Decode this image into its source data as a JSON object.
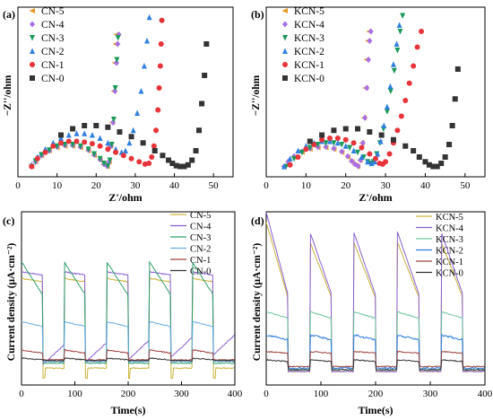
{
  "figure": {
    "panels": [
      "a",
      "b",
      "c",
      "d"
    ]
  },
  "chart_data": [
    {
      "id": "a",
      "panel_label": "(a)",
      "type": "scatter",
      "xlabel": "Z'/ohm",
      "ylabel": "−Z''/ohm",
      "xlim": [
        0,
        55
      ],
      "ylim": [
        0,
        1
      ],
      "yticks_hidden": true,
      "xticks": [
        0,
        10,
        20,
        30,
        40,
        50
      ],
      "legend": "top-left",
      "series": [
        {
          "name": "CN-5",
          "color": "#E69A2B",
          "marker": "triangle-left",
          "x": [
            3.5,
            4.5,
            6.0,
            8.0,
            10.0,
            12.0,
            14.0,
            16.0,
            18.0,
            19.5,
            21.0,
            22.0,
            22.8,
            23.3,
            23.7,
            24.1,
            24.5,
            24.8,
            25.0,
            25.2
          ],
          "y": [
            0.02,
            0.05,
            0.09,
            0.12,
            0.14,
            0.15,
            0.15,
            0.14,
            0.12,
            0.09,
            0.06,
            0.03,
            0.02,
            0.05,
            0.15,
            0.3,
            0.5,
            0.68,
            0.8,
            0.86
          ]
        },
        {
          "name": "CN-4",
          "color": "#A86FE6",
          "marker": "diamond",
          "x": [
            3.5,
            4.5,
            6.0,
            8.0,
            10.0,
            12.0,
            14.0,
            16.0,
            18.0,
            19.5,
            21.0,
            22.0,
            22.8,
            23.3,
            23.8,
            24.3,
            24.8,
            25.2,
            25.5,
            25.8
          ],
          "y": [
            0.02,
            0.05,
            0.09,
            0.12,
            0.145,
            0.155,
            0.155,
            0.145,
            0.125,
            0.095,
            0.065,
            0.035,
            0.022,
            0.05,
            0.15,
            0.3,
            0.5,
            0.68,
            0.8,
            0.86
          ]
        },
        {
          "name": "CN-3",
          "color": "#1A9A5A",
          "marker": "triangle-down",
          "x": [
            3.5,
            4.5,
            6.0,
            8.0,
            10.0,
            12.0,
            14.0,
            16.0,
            18.0,
            19.5,
            21.0,
            22.0,
            23.0,
            23.5,
            24.0,
            24.5,
            24.9,
            25.3,
            25.6
          ],
          "y": [
            0.02,
            0.055,
            0.095,
            0.125,
            0.15,
            0.16,
            0.16,
            0.15,
            0.13,
            0.1,
            0.07,
            0.04,
            0.025,
            0.06,
            0.16,
            0.32,
            0.52,
            0.7,
            0.84
          ]
        },
        {
          "name": "CN-2",
          "color": "#2F7FE0",
          "marker": "triangle-up",
          "x": [
            3.5,
            5.0,
            7.0,
            9.0,
            11.0,
            13.0,
            15.0,
            17.0,
            19.0,
            21.0,
            23.0,
            25.0,
            26.5,
            27.5,
            28.5,
            29.5,
            30.5,
            31.5,
            32.3,
            33.0,
            33.6
          ],
          "y": [
            0.03,
            0.08,
            0.13,
            0.17,
            0.2,
            0.22,
            0.23,
            0.23,
            0.22,
            0.2,
            0.17,
            0.13,
            0.11,
            0.12,
            0.17,
            0.25,
            0.36,
            0.5,
            0.66,
            0.82,
            0.97
          ]
        },
        {
          "name": "CN-1",
          "color": "#E8333A",
          "marker": "circle",
          "x": [
            3.5,
            5.0,
            7.0,
            9.0,
            11.0,
            13.0,
            15.0,
            17.0,
            19.0,
            21.0,
            23.0,
            25.0,
            27.0,
            29.0,
            31.0,
            32.5,
            33.5,
            34.2,
            34.8,
            35.3,
            35.8,
            36.1,
            36.4,
            36.6,
            36.8
          ],
          "y": [
            0.02,
            0.07,
            0.11,
            0.15,
            0.17,
            0.18,
            0.18,
            0.175,
            0.165,
            0.15,
            0.13,
            0.11,
            0.09,
            0.07,
            0.05,
            0.035,
            0.04,
            0.08,
            0.15,
            0.25,
            0.38,
            0.52,
            0.66,
            0.8,
            0.95
          ]
        },
        {
          "name": "CN-0",
          "color": "#333333",
          "marker": "square",
          "x": [
            11.0,
            14.0,
            17.0,
            20.0,
            23.0,
            26.0,
            29.0,
            32.0,
            35.0,
            37.0,
            38.5,
            39.5,
            40.5,
            41.5,
            42.5,
            43.5,
            44.5,
            45.5,
            46.3,
            47.0,
            47.7,
            48.2
          ],
          "y": [
            0.22,
            0.26,
            0.28,
            0.28,
            0.27,
            0.24,
            0.21,
            0.17,
            0.12,
            0.09,
            0.06,
            0.04,
            0.025,
            0.02,
            0.02,
            0.03,
            0.06,
            0.12,
            0.25,
            0.42,
            0.6,
            0.8
          ]
        }
      ]
    },
    {
      "id": "b",
      "panel_label": "(b)",
      "type": "scatter",
      "xlabel": "Z'/ohm",
      "ylabel": "−Z''/ohm",
      "xlim": [
        0,
        55
      ],
      "ylim": [
        0,
        1
      ],
      "yticks_hidden": true,
      "xticks": [
        0,
        10,
        20,
        30,
        40,
        50
      ],
      "legend": "top-left",
      "series": [
        {
          "name": "KCN-5",
          "color": "#E69A2B",
          "marker": "triangle-left",
          "x": [
            4.5,
            5.5,
            7.0,
            9.0,
            11.0,
            13.0,
            15.0,
            17.0,
            19.0,
            20.5,
            21.5,
            22.3,
            23.0,
            23.6,
            24.1,
            24.6,
            25.0,
            25.3,
            25.6,
            25.9
          ],
          "y": [
            0.02,
            0.05,
            0.08,
            0.11,
            0.13,
            0.14,
            0.14,
            0.13,
            0.11,
            0.08,
            0.05,
            0.03,
            0.02,
            0.06,
            0.17,
            0.33,
            0.52,
            0.7,
            0.82,
            0.88
          ]
        },
        {
          "name": "KCN-4",
          "color": "#A86FE6",
          "marker": "diamond",
          "x": [
            4.5,
            5.5,
            7.0,
            9.0,
            11.0,
            13.0,
            15.0,
            17.0,
            19.0,
            20.5,
            21.5,
            22.3,
            23.1,
            23.7,
            24.3,
            24.8,
            25.3,
            25.7,
            26.0,
            26.3
          ],
          "y": [
            0.02,
            0.05,
            0.085,
            0.115,
            0.135,
            0.145,
            0.145,
            0.135,
            0.115,
            0.085,
            0.055,
            0.035,
            0.022,
            0.06,
            0.17,
            0.33,
            0.52,
            0.7,
            0.82,
            0.88
          ]
        },
        {
          "name": "KCN-3",
          "color": "#1A9A5A",
          "marker": "triangle-down",
          "x": [
            5.0,
            7.0,
            9.0,
            11.0,
            13.0,
            15.0,
            17.0,
            19.0,
            21.0,
            23.0,
            24.5,
            25.5,
            26.3,
            27.0,
            27.8,
            28.6,
            29.5,
            30.4,
            31.3,
            32.2,
            33.0,
            33.7,
            34.3
          ],
          "y": [
            0.02,
            0.07,
            0.11,
            0.14,
            0.16,
            0.17,
            0.17,
            0.16,
            0.14,
            0.11,
            0.08,
            0.05,
            0.04,
            0.05,
            0.1,
            0.17,
            0.26,
            0.37,
            0.5,
            0.63,
            0.76,
            0.88,
            0.98
          ]
        },
        {
          "name": "KCN-2",
          "color": "#2F7FE0",
          "marker": "triangle-up",
          "x": [
            4.5,
            6.0,
            8.0,
            10.0,
            12.0,
            14.0,
            16.0,
            18.0,
            20.0,
            22.0,
            24.0,
            25.5,
            26.5,
            27.3,
            28.0,
            28.8,
            29.6,
            30.4,
            31.2,
            32.0,
            32.8,
            33.5
          ],
          "y": [
            0.02,
            0.07,
            0.12,
            0.15,
            0.17,
            0.18,
            0.18,
            0.17,
            0.15,
            0.12,
            0.08,
            0.05,
            0.04,
            0.05,
            0.1,
            0.18,
            0.28,
            0.4,
            0.53,
            0.67,
            0.8,
            0.92
          ]
        },
        {
          "name": "KCN-1",
          "color": "#E8333A",
          "marker": "circle",
          "x": [
            6.0,
            8.0,
            10.0,
            12.0,
            14.0,
            16.0,
            18.0,
            20.0,
            22.0,
            24.0,
            26.0,
            27.5,
            28.5,
            29.3,
            30.0,
            31.0,
            32.0,
            33.0,
            34.0,
            35.0,
            36.0,
            37.0,
            38.0,
            39.0
          ],
          "y": [
            0.03,
            0.08,
            0.13,
            0.16,
            0.19,
            0.2,
            0.2,
            0.19,
            0.17,
            0.14,
            0.1,
            0.07,
            0.04,
            0.035,
            0.05,
            0.1,
            0.17,
            0.25,
            0.34,
            0.44,
            0.55,
            0.66,
            0.78,
            0.88
          ]
        },
        {
          "name": "KCN-0",
          "color": "#333333",
          "marker": "square",
          "x": [
            11.0,
            14.0,
            17.0,
            20.0,
            23.0,
            26.0,
            29.0,
            32.0,
            35.0,
            37.0,
            38.5,
            40.0,
            41.0,
            42.0,
            43.0,
            44.0,
            45.0,
            46.0,
            46.8,
            47.5,
            48.2
          ],
          "y": [
            0.18,
            0.22,
            0.25,
            0.26,
            0.26,
            0.24,
            0.22,
            0.19,
            0.15,
            0.12,
            0.08,
            0.05,
            0.03,
            0.02,
            0.02,
            0.04,
            0.08,
            0.16,
            0.28,
            0.45,
            0.64
          ]
        }
      ]
    },
    {
      "id": "c",
      "panel_label": "(c)",
      "type": "line",
      "xlabel": "Time(s)",
      "ylabel": "Current density (μA·cm⁻²)",
      "xlim": [
        0,
        400
      ],
      "ylim": [
        0,
        1
      ],
      "yticks_hidden": true,
      "xticks": [
        0,
        100,
        200,
        300,
        400
      ],
      "legend": "top-right",
      "on_intervals": [
        [
          0,
          40
        ],
        [
          80,
          120
        ],
        [
          160,
          200
        ],
        [
          240,
          280
        ],
        [
          320,
          360
        ]
      ],
      "series": [
        {
          "name": "CN-5",
          "color": "#C9B33A",
          "on_start": 0.62,
          "on_end": 0.6,
          "off_level": 0.08,
          "spike": 0.06
        },
        {
          "name": "CN-4",
          "color": "#8A5FD0",
          "on_start": 0.66,
          "on_end": 0.64,
          "off_level": 0.1,
          "rising_off": true
        },
        {
          "name": "CN-3",
          "color": "#2FA06A",
          "on_start": 0.72,
          "on_end": 0.52,
          "off_level": 0.11
        },
        {
          "name": "CN-2",
          "color": "#6AAEE8",
          "on_start": 0.36,
          "on_end": 0.33,
          "off_level": 0.12
        },
        {
          "name": "CN-1",
          "color": "#A0433F",
          "on_start": 0.19,
          "on_end": 0.17,
          "off_level": 0.13
        },
        {
          "name": "CN-0",
          "color": "#333333",
          "on_start": 0.14,
          "on_end": 0.13,
          "off_level": 0.125
        }
      ]
    },
    {
      "id": "d",
      "panel_label": "(d)",
      "type": "line",
      "xlabel": "Time(s)",
      "ylabel": "Current density (μA·cm⁻²)",
      "xlim": [
        0,
        400
      ],
      "ylim": [
        0,
        1
      ],
      "yticks_hidden": true,
      "xticks": [
        0,
        100,
        200,
        300,
        400
      ],
      "legend": "top-right",
      "on_intervals": [
        [
          0,
          40
        ],
        [
          80,
          120
        ],
        [
          160,
          200
        ],
        [
          240,
          280
        ],
        [
          320,
          360
        ]
      ],
      "series": [
        {
          "name": "KCN-5",
          "color": "#C9B33A",
          "on_start": 0.84,
          "on_end": 0.5,
          "off_level": 0.06,
          "decay": 0.12
        },
        {
          "name": "KCN-4",
          "color": "#8A5FD0",
          "on_start": 0.9,
          "on_end": 0.52,
          "off_level": 0.06,
          "decay": 0.12
        },
        {
          "name": "KCN-3",
          "color": "#6FC8A0",
          "on_start": 0.42,
          "on_end": 0.38,
          "off_level": 0.07
        },
        {
          "name": "KCN-2",
          "color": "#2F7FE0",
          "on_start": 0.28,
          "on_end": 0.25,
          "off_level": 0.08,
          "noise": 0.012
        },
        {
          "name": "KCN-1",
          "color": "#A0433F",
          "on_start": 0.18,
          "on_end": 0.17,
          "off_level": 0.09
        },
        {
          "name": "KCN-0",
          "color": "#333333",
          "on_start": 0.13,
          "on_end": 0.12,
          "off_level": 0.07
        }
      ]
    }
  ]
}
